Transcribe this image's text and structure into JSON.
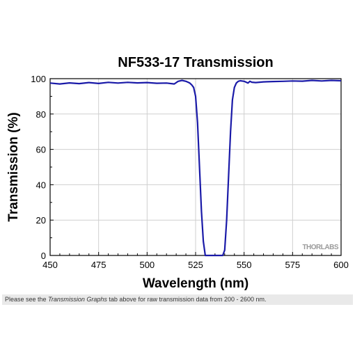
{
  "chart_data": {
    "type": "line",
    "title": "NF533-17 Transmission",
    "xlabel": "Wavelength (nm)",
    "ylabel": "Transmission (%)",
    "xlim": [
      450,
      600
    ],
    "ylim": [
      0,
      100
    ],
    "xticks": [
      "450",
      "475",
      "500",
      "525",
      "550",
      "575",
      "600"
    ],
    "yticks": [
      "0",
      "20",
      "40",
      "60",
      "80",
      "100"
    ],
    "grid": true,
    "series": [
      {
        "color": "#1a1aa8",
        "x": [
          450,
          455,
          460,
          465,
          470,
          475,
          480,
          485,
          490,
          495,
          500,
          505,
          510,
          514,
          516,
          518,
          520,
          522,
          523,
          524,
          525,
          526,
          527,
          528,
          529,
          530,
          532,
          535,
          537,
          539,
          540,
          541,
          542,
          543,
          544,
          545,
          546,
          547,
          548,
          550,
          552,
          553,
          554,
          556,
          560,
          565,
          570,
          575,
          580,
          585,
          590,
          595,
          600
        ],
        "y": [
          97.5,
          97,
          97.6,
          97.2,
          97.8,
          97.3,
          97.9,
          97.5,
          97.9,
          97.6,
          97.8,
          97.4,
          97.5,
          97,
          98.5,
          99,
          98.5,
          97.5,
          96.5,
          95,
          90,
          75,
          50,
          25,
          8,
          0,
          0,
          0,
          0,
          0,
          3,
          20,
          45,
          70,
          88,
          95,
          97.5,
          98.5,
          98.8,
          98.5,
          97.5,
          98.5,
          98,
          97.8,
          98.2,
          98.4,
          98.5,
          98.7,
          98.6,
          99,
          98.7,
          99,
          98.8
        ]
      }
    ]
  },
  "watermark": "THORLABS",
  "caption": {
    "before": "Please see the ",
    "link": "Transmission Graphs",
    "after": " tab above for raw transmission data from 200 - 2600 nm."
  }
}
